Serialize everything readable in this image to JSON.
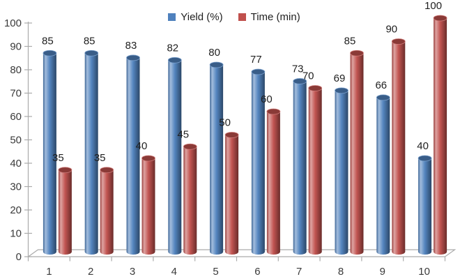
{
  "chart_data": {
    "type": "bar",
    "subtype": "cylinder-3d",
    "title": "",
    "categories": [
      "1",
      "2",
      "3",
      "4",
      "5",
      "6",
      "7",
      "8",
      "9",
      "10"
    ],
    "series": [
      {
        "name": "Yield (%)",
        "color": "#4F81BD",
        "values": [
          85,
          85,
          83,
          82,
          80,
          77,
          73,
          69,
          66,
          40
        ]
      },
      {
        "name": "Time (min)",
        "color": "#C0504D",
        "values": [
          35,
          35,
          40,
          45,
          50,
          60,
          70,
          85,
          90,
          100
        ]
      }
    ],
    "xlabel": "",
    "ylabel": "",
    "ylim": [
      0,
      100
    ],
    "yticks": [
      0,
      10,
      20,
      30,
      40,
      50,
      60,
      70,
      80,
      90,
      100
    ],
    "grid": false,
    "data_labels": true,
    "legend_position": "top-center",
    "axis_color": "#ABABAB",
    "tick_label_color": "#3A3A3A",
    "data_label_color": "#1F1F1F"
  }
}
